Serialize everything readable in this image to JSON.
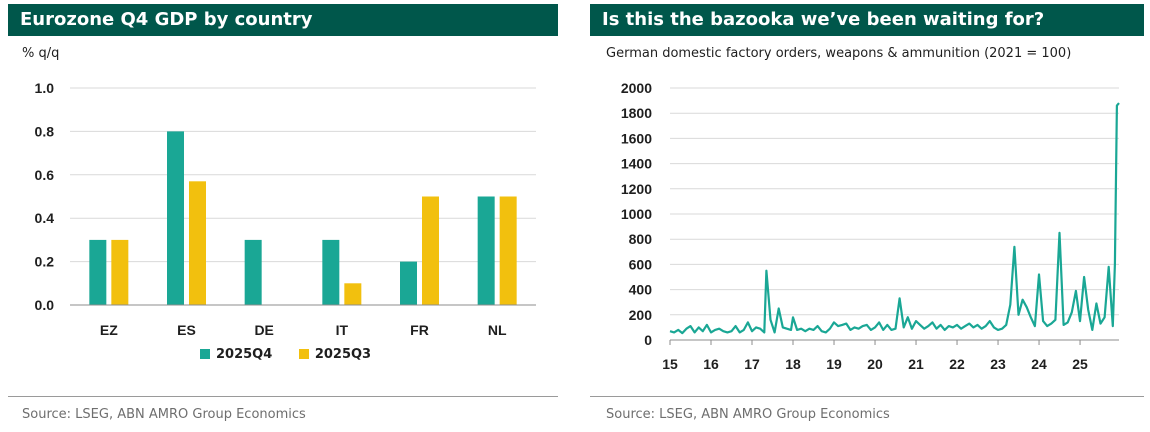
{
  "left": {
    "title": "Eurozone Q4 GDP by country",
    "source": "Source: LSEG, ABN AMRO Group Economics"
  },
  "right": {
    "title": "Is this the bazooka we’ve been waiting for?",
    "source": "Source: LSEG, ABN AMRO Group Economics"
  },
  "colors": {
    "teal": "#1aa795",
    "gold": "#f2c00e",
    "header": "#00574b",
    "grid": "#d9d9d9"
  },
  "chart_data": [
    {
      "type": "bar",
      "title": "Eurozone Q4 GDP by country",
      "ylabel": "% q/q",
      "xlabel": "",
      "categories": [
        "EZ",
        "ES",
        "DE",
        "IT",
        "FR",
        "NL"
      ],
      "series": [
        {
          "name": "2025Q4",
          "values": [
            0.3,
            0.8,
            0.3,
            0.3,
            0.2,
            0.5
          ]
        },
        {
          "name": "2025Q3",
          "values": [
            0.3,
            0.57,
            0.0,
            0.1,
            0.5,
            0.5
          ]
        }
      ],
      "ylim": [
        0,
        1.0
      ],
      "yticks": [
        "0.0",
        "0.2",
        "0.4",
        "0.6",
        "0.8",
        "1.0"
      ],
      "legend": "bottom-center",
      "grid": true
    },
    {
      "type": "line",
      "title": "German domestic factory orders, weapons & ammunition (2021 = 100)",
      "xlabel": "",
      "ylabel": "",
      "xlim": [
        15.0,
        25.95
      ],
      "ylim": [
        0,
        2000
      ],
      "xticks": [
        15,
        16,
        17,
        18,
        19,
        20,
        21,
        22,
        23,
        24,
        25
      ],
      "xtick_labels": [
        "15",
        "16",
        "17",
        "18",
        "19",
        "20",
        "21",
        "22",
        "23",
        "24",
        "25"
      ],
      "yticks": [
        0,
        200,
        400,
        600,
        800,
        1000,
        1200,
        1400,
        1600,
        1800,
        2000
      ],
      "ytick_labels": [
        "0",
        "200",
        "400",
        "600",
        "800",
        "1000",
        "1200",
        "1400",
        "1600",
        "1800",
        "2000"
      ],
      "grid": true,
      "series": [
        {
          "name": "German domestic factory orders, weapons & ammunition",
          "x": [
            15.0,
            15.1,
            15.2,
            15.3,
            15.4,
            15.5,
            15.6,
            15.7,
            15.8,
            15.9,
            16.0,
            16.1,
            16.2,
            16.3,
            16.4,
            16.5,
            16.6,
            16.7,
            16.8,
            16.9,
            17.0,
            17.1,
            17.2,
            17.3,
            17.35,
            17.45,
            17.55,
            17.65,
            17.75,
            17.85,
            17.95,
            18.0,
            18.1,
            18.2,
            18.3,
            18.4,
            18.5,
            18.6,
            18.7,
            18.8,
            18.9,
            19.0,
            19.1,
            19.2,
            19.3,
            19.4,
            19.5,
            19.6,
            19.7,
            19.8,
            19.9,
            20.0,
            20.1,
            20.2,
            20.3,
            20.4,
            20.5,
            20.6,
            20.7,
            20.8,
            20.9,
            21.0,
            21.1,
            21.2,
            21.3,
            21.4,
            21.5,
            21.6,
            21.7,
            21.8,
            21.9,
            22.0,
            22.1,
            22.2,
            22.3,
            22.4,
            22.5,
            22.6,
            22.7,
            22.8,
            22.9,
            23.0,
            23.1,
            23.2,
            23.3,
            23.4,
            23.5,
            23.6,
            23.7,
            23.8,
            23.9,
            24.0,
            24.1,
            24.2,
            24.3,
            24.4,
            24.5,
            24.6,
            24.7,
            24.8,
            24.9,
            25.0,
            25.1,
            25.2,
            25.3,
            25.4,
            25.5,
            25.6,
            25.7,
            25.8,
            25.85,
            25.9,
            25.95
          ],
          "y": [
            70,
            60,
            80,
            55,
            90,
            110,
            60,
            100,
            70,
            120,
            60,
            80,
            90,
            70,
            60,
            70,
            110,
            60,
            80,
            140,
            70,
            100,
            90,
            60,
            550,
            160,
            60,
            250,
            100,
            90,
            80,
            180,
            80,
            90,
            70,
            90,
            80,
            110,
            70,
            60,
            90,
            140,
            110,
            120,
            130,
            80,
            100,
            90,
            110,
            120,
            80,
            100,
            140,
            80,
            120,
            80,
            90,
            330,
            100,
            180,
            90,
            150,
            120,
            90,
            110,
            140,
            90,
            120,
            80,
            110,
            100,
            120,
            90,
            110,
            130,
            100,
            120,
            90,
            110,
            150,
            100,
            80,
            90,
            120,
            280,
            740,
            200,
            320,
            260,
            180,
            110,
            520,
            150,
            110,
            130,
            160,
            850,
            120,
            140,
            220,
            390,
            150,
            500,
            240,
            80,
            290,
            130,
            180,
            580,
            110,
            600,
            1860,
            1880
          ]
        }
      ]
    }
  ]
}
